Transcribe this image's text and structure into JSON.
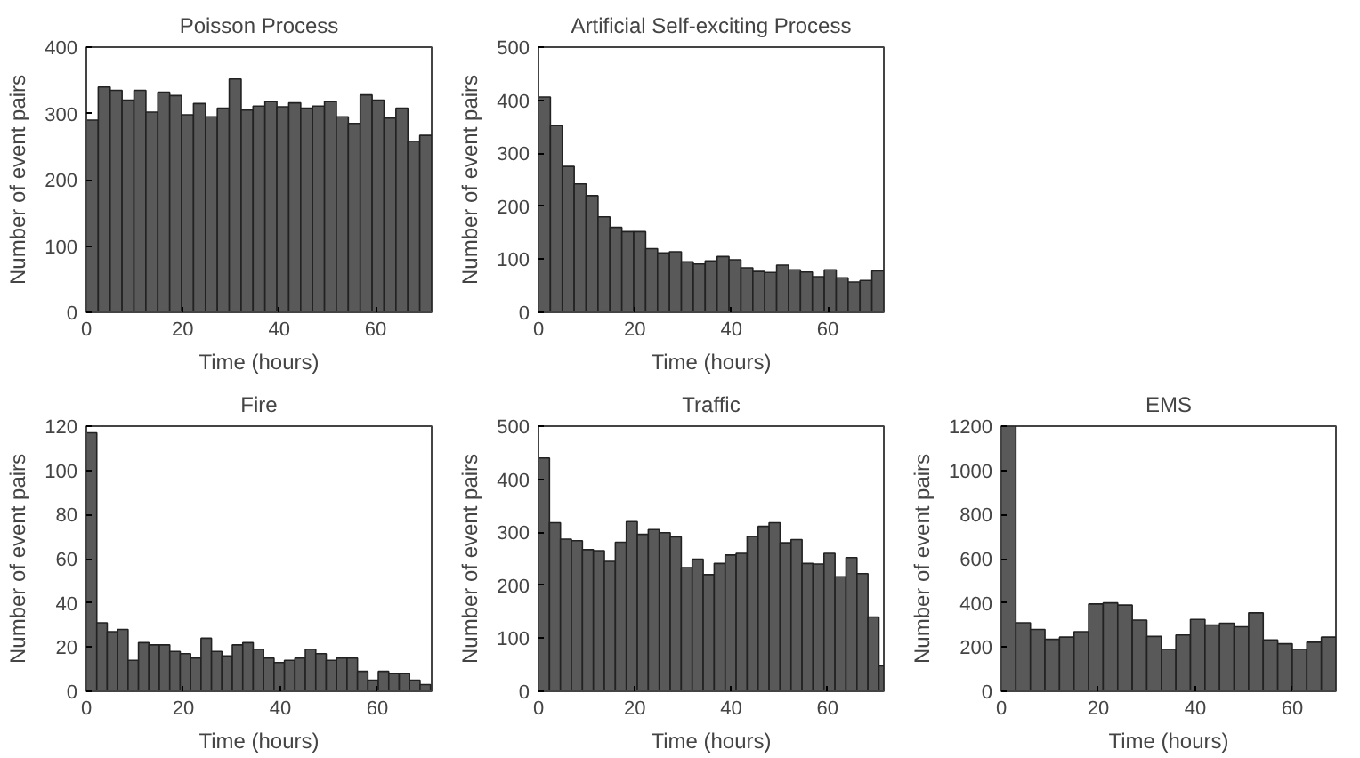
{
  "chart_data": [
    {
      "type": "histogram",
      "title": "Poisson Process",
      "xlabel": "Time (hours)",
      "ylabel": "Number of event pairs",
      "color": "#595959",
      "bins": [
        0,
        2.47,
        4.94,
        7.41,
        9.88,
        12.35,
        14.82,
        17.29,
        19.76,
        22.23,
        24.7,
        27.17,
        29.64,
        32.11,
        34.58,
        37.05,
        39.52,
        41.99,
        44.46,
        46.93,
        49.4,
        51.87,
        54.34,
        56.81,
        59.28,
        61.75,
        64.22,
        66.69,
        69.16,
        71.63
      ],
      "values": [
        290,
        340,
        335,
        320,
        335,
        302,
        332,
        327,
        298,
        315,
        295,
        308,
        352,
        305,
        311,
        318,
        310,
        316,
        308,
        311,
        318,
        295,
        285,
        328,
        320,
        293,
        308,
        258,
        267
      ],
      "xlim": [
        0,
        71.63
      ],
      "ylim": [
        0,
        400
      ],
      "xticks": [
        0,
        20,
        40,
        60
      ],
      "yticks": [
        0,
        100,
        200,
        300,
        400
      ]
    },
    {
      "type": "histogram",
      "title": "Artificial Self-exciting Process",
      "xlabel": "Time (hours)",
      "ylabel": "Number of event pairs",
      "color": "#595959",
      "bins": [
        0,
        2.47,
        4.94,
        7.41,
        9.88,
        12.35,
        14.82,
        17.29,
        19.76,
        22.23,
        24.7,
        27.17,
        29.64,
        32.11,
        34.58,
        37.05,
        39.52,
        41.99,
        44.46,
        46.93,
        49.4,
        51.87,
        54.34,
        56.81,
        59.28,
        61.75,
        64.22,
        66.69,
        69.16,
        71.63
      ],
      "values": [
        406,
        352,
        275,
        242,
        220,
        180,
        160,
        152,
        152,
        120,
        112,
        114,
        95,
        91,
        97,
        105,
        99,
        84,
        77,
        75,
        89,
        80,
        76,
        67,
        80,
        65,
        57,
        60,
        78
      ],
      "xlim": [
        0,
        71.63
      ],
      "ylim": [
        0,
        500
      ],
      "xticks": [
        0,
        20,
        40,
        60
      ],
      "yticks": [
        0,
        100,
        200,
        300,
        400,
        500
      ]
    },
    {
      "type": "histogram",
      "title": "Fire",
      "xlabel": "Time (hours)",
      "ylabel": "Number of event pairs",
      "color": "#595959",
      "bins": [
        0,
        2.15,
        4.3,
        6.45,
        8.6,
        10.75,
        12.9,
        15.05,
        17.2,
        19.35,
        21.5,
        23.65,
        25.8,
        27.95,
        30.1,
        32.25,
        34.4,
        36.55,
        38.7,
        40.85,
        43,
        45.15,
        47.3,
        49.45,
        51.6,
        53.75,
        55.9,
        58.05,
        60.2,
        62.35,
        64.5,
        66.65,
        68.8,
        70.95
      ],
      "values": [
        117,
        31,
        27,
        28,
        14,
        22,
        21,
        21,
        18,
        17,
        15,
        24,
        18,
        16,
        21,
        22,
        19,
        15,
        13,
        14,
        15,
        19,
        17,
        14,
        15,
        15,
        9,
        5,
        9,
        8,
        8,
        5,
        3
      ],
      "xlim": [
        0,
        71.2
      ],
      "ylim": [
        0,
        120
      ],
      "xticks": [
        0,
        20,
        40,
        60
      ],
      "yticks": [
        0,
        20,
        40,
        60,
        80,
        100,
        120
      ]
    },
    {
      "type": "histogram",
      "title": "Traffic",
      "xlabel": "Time (hours)",
      "ylabel": "Number of event pairs",
      "color": "#595959",
      "bins": [
        0,
        2.28,
        4.56,
        6.84,
        9.12,
        11.4,
        13.68,
        15.96,
        18.24,
        20.52,
        22.8,
        25.08,
        27.36,
        29.64,
        31.92,
        34.2,
        36.48,
        38.76,
        41.04,
        43.32,
        45.6,
        47.88,
        50.16,
        52.44,
        54.72,
        57,
        59.28,
        61.56,
        63.84,
        66.12,
        68.4,
        70.68,
        71.7
      ],
      "values": [
        440,
        318,
        287,
        284,
        267,
        265,
        245,
        281,
        320,
        296,
        305,
        299,
        291,
        233,
        249,
        220,
        241,
        257,
        260,
        292,
        311,
        318,
        280,
        286,
        241,
        240,
        260,
        216,
        252,
        222,
        140,
        48
      ],
      "xlim": [
        0,
        71.7
      ],
      "ylim": [
        0,
        500
      ],
      "xticks": [
        0,
        20,
        40,
        60
      ],
      "yticks": [
        0,
        100,
        200,
        300,
        400,
        500
      ]
    },
    {
      "type": "histogram",
      "title": "EMS",
      "xlabel": "Time (hours)",
      "ylabel": "Number of event pairs",
      "color": "#595959",
      "bins": [
        0,
        3,
        6,
        9,
        12,
        15,
        18,
        21,
        24,
        27,
        30,
        33,
        36,
        39,
        42,
        45,
        48,
        51,
        54,
        57,
        60,
        63,
        66,
        69
      ],
      "values": [
        1200,
        310,
        280,
        235,
        245,
        270,
        395,
        400,
        390,
        322,
        248,
        190,
        255,
        325,
        300,
        308,
        292,
        355,
        232,
        215,
        190,
        222,
        245
      ],
      "xlim": [
        0,
        69
      ],
      "ylim": [
        0,
        1200
      ],
      "xticks": [
        0,
        20,
        40,
        60
      ],
      "yticks": [
        0,
        200,
        400,
        600,
        800,
        1000,
        1200
      ]
    }
  ]
}
